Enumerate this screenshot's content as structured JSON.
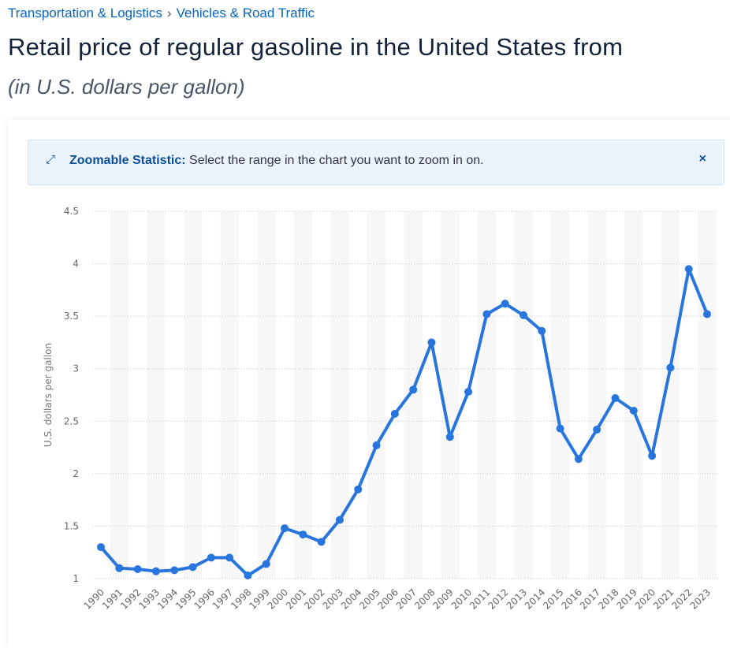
{
  "breadcrumb": {
    "items": [
      "Transportation & Logistics",
      "Vehicles & Road Traffic"
    ],
    "separator": "›"
  },
  "title": "Retail price of regular gasoline in the United States from",
  "subtitle": "(in U.S. dollars per gallon)",
  "banner": {
    "icon": "expand-icon",
    "label": "Zoomable Statistic:",
    "text": "Select the range in the chart you want to zoom in on.",
    "close": "×"
  },
  "chart_data": {
    "type": "line",
    "title": "Retail price of regular gasoline in the United States",
    "xlabel": "",
    "ylabel": "U.S. dollars per gallon",
    "ylim": [
      1,
      4.5
    ],
    "yticks": [
      "1",
      "1.5",
      "2",
      "2.5",
      "3",
      "3.5",
      "4",
      "4.5"
    ],
    "color": "#2876dd",
    "x": [
      "1990",
      "1991",
      "1992",
      "1993",
      "1994",
      "1995",
      "1996",
      "1997",
      "1998",
      "1999",
      "2000",
      "2001",
      "2002",
      "2003",
      "2004",
      "2005",
      "2006",
      "2007",
      "2008",
      "2009",
      "2010",
      "2011",
      "2012",
      "2013",
      "2014",
      "2015",
      "2016",
      "2017",
      "2018",
      "2019",
      "2020",
      "2021",
      "2022",
      "2023"
    ],
    "values": [
      1.3,
      1.1,
      1.09,
      1.07,
      1.08,
      1.11,
      1.2,
      1.2,
      1.03,
      1.14,
      1.48,
      1.42,
      1.35,
      1.56,
      1.85,
      2.27,
      2.57,
      2.8,
      3.25,
      2.35,
      2.78,
      3.52,
      3.62,
      3.51,
      3.36,
      2.43,
      2.14,
      2.42,
      2.72,
      2.6,
      2.17,
      3.01,
      3.95,
      3.52
    ]
  }
}
